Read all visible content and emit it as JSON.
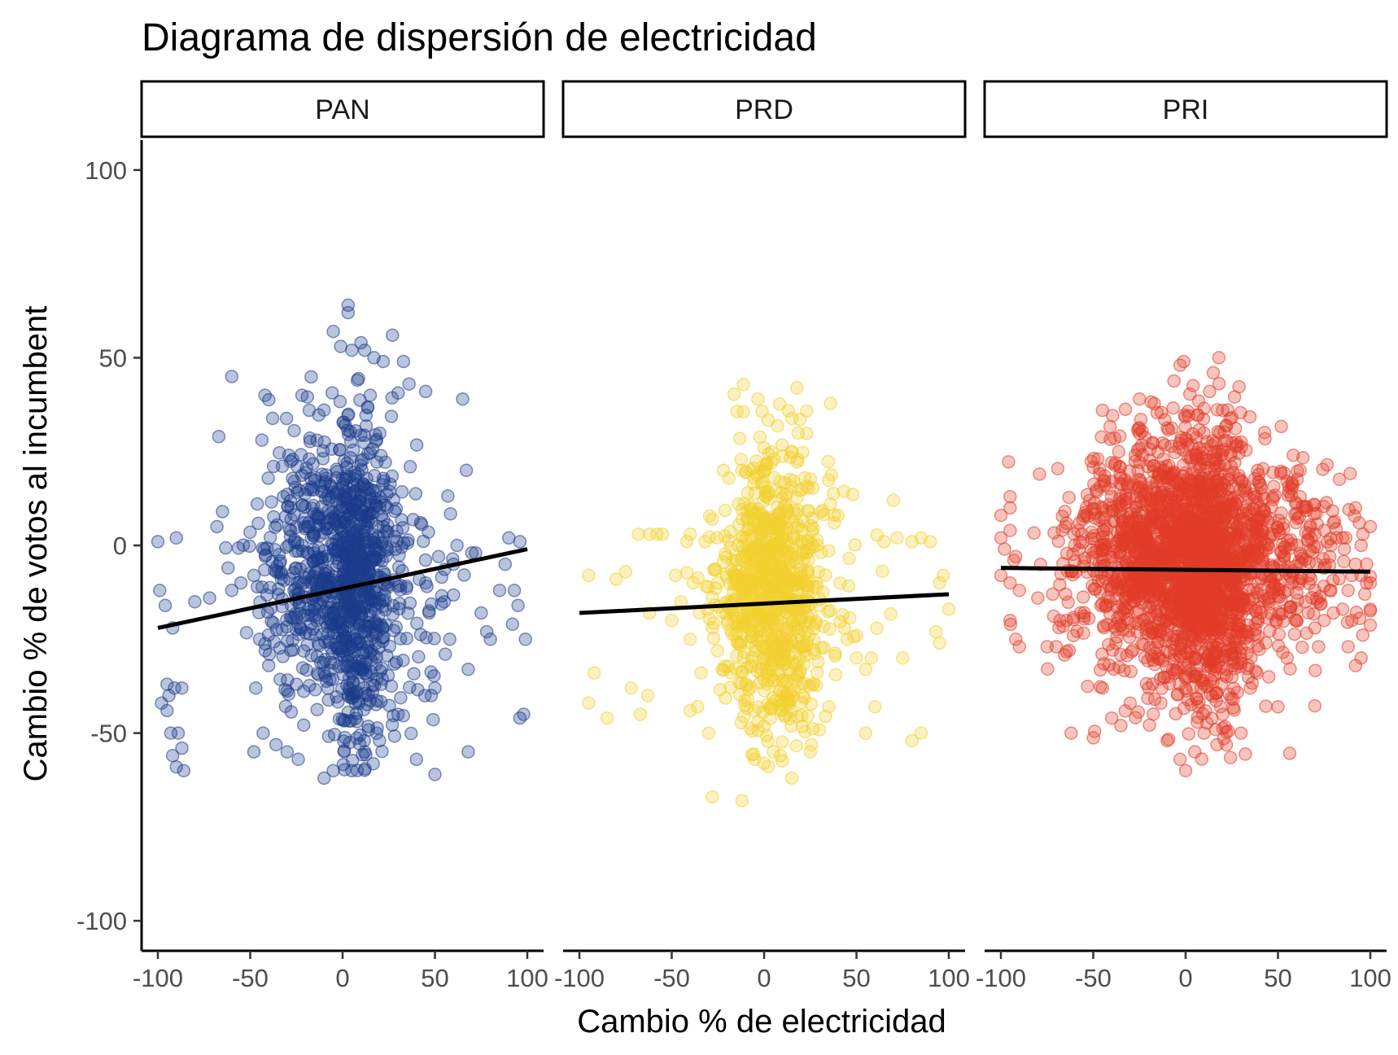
{
  "chart_data": {
    "type": "scatter",
    "title": "Diagrama de dispersión de electricidad",
    "xlabel": "Cambio % de electricidad",
    "ylabel": "Cambio % de votos al incumbent",
    "xlim": [
      -100,
      100
    ],
    "ylim": [
      -108,
      108
    ],
    "x_ticks": [
      -100,
      -50,
      0,
      50,
      100
    ],
    "x_tick_labels": [
      "-100",
      "-50",
      "0",
      "50",
      "100"
    ],
    "y_ticks": [
      -100,
      -50,
      0,
      50,
      100
    ],
    "y_tick_labels": [
      "-100",
      "-50",
      "0",
      "50",
      "100"
    ],
    "grid": false,
    "legend": "none",
    "point_opacity": 0.3,
    "trend_line_color": "#000000",
    "panels": [
      {
        "name": "PAN",
        "color": "#1B3A8A",
        "trend": {
          "x": [
            -100,
            100
          ],
          "y": [
            -22,
            -1
          ]
        },
        "outliers": [
          [
            3,
            64
          ],
          [
            3,
            62
          ],
          [
            -5,
            57
          ],
          [
            -1,
            53
          ],
          [
            5,
            52
          ],
          [
            10,
            54
          ],
          [
            12,
            52
          ],
          [
            27,
            56
          ],
          [
            22,
            49
          ],
          [
            17,
            50
          ],
          [
            33,
            49
          ],
          [
            36,
            43
          ],
          [
            45,
            41
          ],
          [
            -60,
            45
          ],
          [
            -42,
            40
          ],
          [
            -22,
            40
          ],
          [
            -67,
            29
          ],
          [
            -18,
            36
          ],
          [
            8,
            44
          ],
          [
            15,
            40
          ],
          [
            -90,
            2
          ],
          [
            -100,
            1
          ],
          [
            -99,
            -12
          ],
          [
            -96,
            -16
          ],
          [
            -92,
            -22
          ],
          [
            -95,
            -37
          ],
          [
            -91,
            -38
          ],
          [
            -87,
            -38
          ],
          [
            -94,
            -40
          ],
          [
            -98,
            -42
          ],
          [
            -95,
            -44
          ],
          [
            -93,
            -50
          ],
          [
            -89,
            -50
          ],
          [
            -92,
            -56
          ],
          [
            -87,
            -54
          ],
          [
            -90,
            -59
          ],
          [
            -86,
            -60
          ],
          [
            -80,
            -15
          ],
          [
            -72,
            -14
          ],
          [
            -68,
            5
          ],
          [
            -65,
            9
          ],
          [
            -62,
            -6
          ],
          [
            -60,
            -12
          ],
          [
            -55,
            -10
          ],
          [
            -48,
            -8
          ],
          [
            -45,
            -25
          ],
          [
            -47,
            -38
          ],
          [
            -48,
            -55
          ],
          [
            -43,
            -50
          ],
          [
            -40,
            -32
          ],
          [
            -30,
            -55
          ],
          [
            -28,
            -28
          ],
          [
            -25,
            -37
          ],
          [
            -32,
            13
          ],
          [
            -28,
            4
          ],
          [
            -22,
            0
          ],
          [
            -18,
            23
          ],
          [
            -10,
            -62
          ],
          [
            -5,
            -60
          ],
          [
            5,
            -60
          ],
          [
            12,
            -55
          ],
          [
            20,
            -52
          ],
          [
            30,
            -45
          ],
          [
            40,
            -57
          ],
          [
            50,
            -61
          ],
          [
            48,
            -40
          ],
          [
            50,
            -38
          ],
          [
            45,
            -10
          ],
          [
            52,
            -3
          ],
          [
            55,
            -15
          ],
          [
            58,
            -25
          ],
          [
            60,
            -5
          ],
          [
            62,
            0
          ],
          [
            65,
            39
          ],
          [
            67,
            20
          ],
          [
            68,
            -33
          ],
          [
            68,
            -55
          ],
          [
            70,
            -2
          ],
          [
            72,
            -2
          ],
          [
            75,
            -18
          ],
          [
            78,
            -23
          ],
          [
            80,
            -25
          ],
          [
            85,
            -12
          ],
          [
            88,
            -5
          ],
          [
            90,
            2
          ],
          [
            92,
            -21
          ],
          [
            95,
            -16
          ],
          [
            96,
            -46
          ],
          [
            98,
            -45
          ],
          [
            99,
            -25
          ],
          [
            96,
            1
          ],
          [
            93,
            -12
          ]
        ],
        "core": [
          {
            "x": -20,
            "y": -5,
            "sx": 14,
            "sy": 18,
            "n": 230
          },
          {
            "x": 0,
            "y": -8,
            "sx": 14,
            "sy": 19,
            "n": 400
          },
          {
            "x": 8,
            "y": -12,
            "sx": 8,
            "sy": 22,
            "n": 300
          },
          {
            "x": 25,
            "y": -12,
            "sx": 18,
            "sy": 18,
            "n": 140
          }
        ]
      },
      {
        "name": "PRD",
        "color": "#F2D02E",
        "trend": {
          "x": [
            -100,
            100
          ],
          "y": [
            -18,
            -13
          ]
        },
        "outliers": [
          [
            0,
            26
          ],
          [
            15,
            25
          ],
          [
            -12,
            20
          ],
          [
            -22,
            20
          ],
          [
            22,
            18
          ],
          [
            -28,
            7
          ],
          [
            38,
            6
          ],
          [
            40,
            8
          ],
          [
            -40,
            3
          ],
          [
            -32,
            1
          ],
          [
            70,
            12
          ],
          [
            65,
            1
          ],
          [
            72,
            2
          ],
          [
            80,
            1
          ],
          [
            85,
            2
          ],
          [
            90,
            1
          ],
          [
            95,
            -10
          ],
          [
            97,
            -8
          ],
          [
            100,
            -17
          ],
          [
            93,
            -23
          ],
          [
            95,
            -26
          ],
          [
            -95,
            -8
          ],
          [
            -80,
            -9
          ],
          [
            -75,
            -7
          ],
          [
            -68,
            3
          ],
          [
            -62,
            3
          ],
          [
            -58,
            3
          ],
          [
            -55,
            3
          ],
          [
            -62,
            -18
          ],
          [
            -67,
            -45
          ],
          [
            -85,
            -46
          ],
          [
            -92,
            -34
          ],
          [
            -95,
            -42
          ],
          [
            -72,
            -38
          ],
          [
            -63,
            -40
          ],
          [
            -40,
            -44
          ],
          [
            -36,
            -43
          ],
          [
            -30,
            -50
          ],
          [
            -28,
            -67
          ],
          [
            -12,
            -68
          ],
          [
            -5,
            -57
          ],
          [
            0,
            -58
          ],
          [
            5,
            -55
          ],
          [
            15,
            -62
          ],
          [
            25,
            -55
          ],
          [
            35,
            -43
          ],
          [
            55,
            -50
          ],
          [
            60,
            -43
          ],
          [
            55,
            -33
          ],
          [
            50,
            -30
          ],
          [
            75,
            -30
          ],
          [
            80,
            -52
          ],
          [
            85,
            -50
          ],
          [
            45,
            -25
          ],
          [
            50,
            -24
          ],
          [
            58,
            -30
          ],
          [
            -28,
            -22
          ],
          [
            -35,
            -18
          ],
          [
            -40,
            -25
          ],
          [
            -45,
            -15
          ],
          [
            -48,
            -8
          ],
          [
            -50,
            -20
          ],
          [
            -25,
            -10
          ]
        ],
        "core": [
          {
            "x": 5,
            "y": -12,
            "sx": 13,
            "sy": 19,
            "n": 650
          },
          {
            "x": -10,
            "y": -10,
            "sx": 12,
            "sy": 13,
            "n": 120
          },
          {
            "x": 22,
            "y": -15,
            "sx": 16,
            "sy": 16,
            "n": 90
          }
        ]
      },
      {
        "name": "PRI",
        "color": "#E23D28",
        "trend": {
          "x": [
            -100,
            100
          ],
          "y": [
            -6,
            -7
          ]
        },
        "outliers": [
          [
            -3,
            48
          ],
          [
            -1,
            49
          ],
          [
            18,
            50
          ],
          [
            15,
            46
          ],
          [
            13,
            41
          ],
          [
            -25,
            39
          ],
          [
            -45,
            36
          ],
          [
            25,
            34
          ],
          [
            20,
            36
          ],
          [
            -35,
            18
          ],
          [
            -40,
            17
          ],
          [
            -52,
            12
          ],
          [
            -100,
            8
          ],
          [
            -100,
            2
          ],
          [
            -98,
            -1
          ],
          [
            -95,
            13
          ],
          [
            -95,
            10
          ],
          [
            -95,
            4
          ],
          [
            -92,
            -3
          ],
          [
            -93,
            -4
          ],
          [
            -100,
            -8
          ],
          [
            -95,
            -10
          ],
          [
            -90,
            -12
          ],
          [
            -95,
            -20
          ],
          [
            -92,
            -25
          ],
          [
            -90,
            -27
          ],
          [
            -80,
            -14
          ],
          [
            -72,
            -13
          ],
          [
            -65,
            -13
          ],
          [
            -75,
            -27
          ],
          [
            -70,
            -27
          ],
          [
            -63,
            -28
          ],
          [
            -62,
            -50
          ],
          [
            -68,
            -20
          ],
          [
            -65,
            5
          ],
          [
            -60,
            0
          ],
          [
            -62,
            -7
          ],
          [
            -45,
            -38
          ],
          [
            -40,
            -46
          ],
          [
            -35,
            -48
          ],
          [
            -30,
            -42
          ],
          [
            -20,
            -38
          ],
          [
            -10,
            -52
          ],
          [
            -3,
            -57
          ],
          [
            0,
            -60
          ],
          [
            5,
            -55
          ],
          [
            10,
            -50
          ],
          [
            20,
            -45
          ],
          [
            30,
            -50
          ],
          [
            35,
            -38
          ],
          [
            50,
            -43
          ],
          [
            45,
            -35
          ],
          [
            55,
            -30
          ],
          [
            60,
            -20
          ],
          [
            65,
            -15
          ],
          [
            70,
            -12
          ],
          [
            75,
            -20
          ],
          [
            80,
            -18
          ],
          [
            85,
            -17
          ],
          [
            88,
            -12
          ],
          [
            90,
            -8
          ],
          [
            92,
            -5
          ],
          [
            95,
            -8
          ],
          [
            97,
            -13
          ],
          [
            100,
            -17
          ],
          [
            98,
            -10
          ],
          [
            96,
            3
          ],
          [
            94,
            6
          ],
          [
            92,
            10
          ],
          [
            100,
            5
          ],
          [
            98,
            -5
          ],
          [
            95,
            0
          ],
          [
            90,
            -20
          ],
          [
            88,
            -27
          ],
          [
            92,
            -32
          ],
          [
            95,
            -30
          ],
          [
            72,
            -27
          ],
          [
            70,
            -22
          ],
          [
            60,
            11
          ],
          [
            62,
            13
          ],
          [
            65,
            10
          ],
          [
            58,
            16
          ],
          [
            55,
            17
          ],
          [
            62,
            20
          ],
          [
            70,
            3
          ],
          [
            75,
            4
          ],
          [
            78,
            -3
          ],
          [
            80,
            6
          ],
          [
            85,
            2
          ]
        ],
        "core": [
          {
            "x": 0,
            "y": -4,
            "sx": 22,
            "sy": 17,
            "n": 1400
          },
          {
            "x": 15,
            "y": -8,
            "sx": 10,
            "sy": 18,
            "n": 400
          },
          {
            "x": 45,
            "y": -5,
            "sx": 22,
            "sy": 12,
            "n": 300
          },
          {
            "x": -35,
            "y": -3,
            "sx": 18,
            "sy": 12,
            "n": 250
          }
        ]
      }
    ]
  }
}
